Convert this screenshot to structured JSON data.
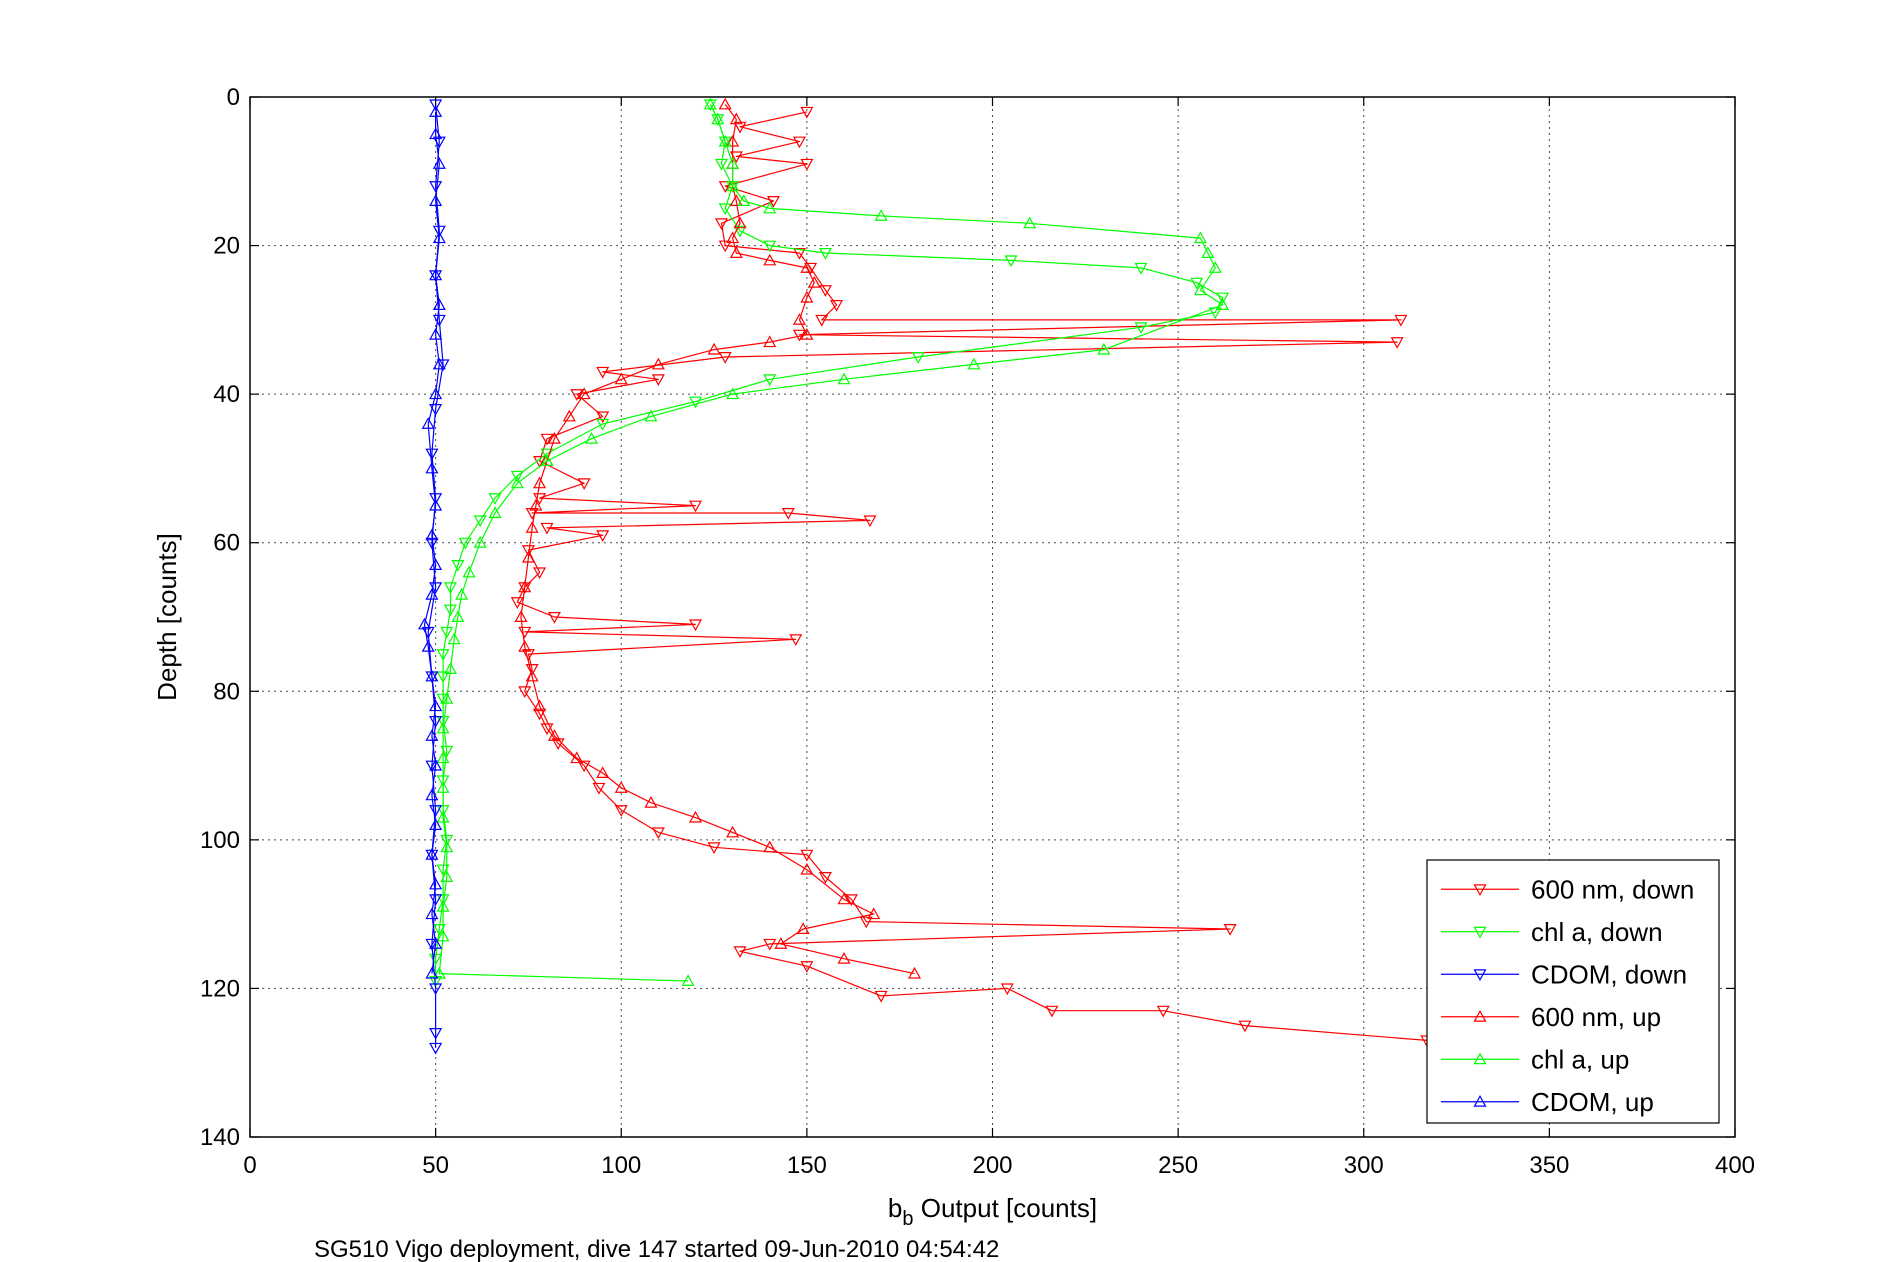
{
  "chart_data": {
    "type": "line",
    "xlabel_main": "b",
    "xlabel_sub": "b",
    "xlabel_rest": " Output [counts]",
    "ylabel": "Depth [counts]",
    "caption": "SG510 Vigo deployment, dive 147 started 09-Jun-2010 04:54:42",
    "xlim": [
      0,
      400
    ],
    "ylim": [
      0,
      140
    ],
    "y_reversed": true,
    "grid": true,
    "legend_position": "bottom-right",
    "xticks": [
      "0",
      "50",
      "100",
      "150",
      "200",
      "250",
      "300",
      "350",
      "400"
    ],
    "yticks": [
      "0",
      "20",
      "40",
      "60",
      "80",
      "100",
      "120",
      "140"
    ],
    "colors": {
      "red": "#ff0000",
      "green": "#00ff00",
      "blue": "#0000ff"
    },
    "series": [
      {
        "name": "600 nm, down",
        "color": "#ff0000",
        "marker": "triangle-down",
        "points": [
          [
            150,
            2
          ],
          [
            132,
            4
          ],
          [
            148,
            6
          ],
          [
            131,
            8
          ],
          [
            150,
            9
          ],
          [
            128,
            12
          ],
          [
            141,
            14
          ],
          [
            127,
            17
          ],
          [
            128,
            20
          ],
          [
            148,
            21
          ],
          [
            151,
            23
          ],
          [
            155,
            26
          ],
          [
            158,
            28
          ],
          [
            154,
            30
          ],
          [
            310,
            30
          ],
          [
            148,
            32
          ],
          [
            309,
            33
          ],
          [
            128,
            35
          ],
          [
            95,
            37
          ],
          [
            110,
            38
          ],
          [
            88,
            40
          ],
          [
            95,
            43
          ],
          [
            80,
            46
          ],
          [
            78,
            49
          ],
          [
            90,
            52
          ],
          [
            78,
            54
          ],
          [
            120,
            55
          ],
          [
            76,
            56
          ],
          [
            145,
            56
          ],
          [
            167,
            57
          ],
          [
            80,
            58
          ],
          [
            95,
            59
          ],
          [
            75,
            61
          ],
          [
            78,
            64
          ],
          [
            74,
            66
          ],
          [
            72,
            68
          ],
          [
            82,
            70
          ],
          [
            120,
            71
          ],
          [
            74,
            72
          ],
          [
            147,
            73
          ],
          [
            75,
            75
          ],
          [
            76,
            77
          ],
          [
            74,
            80
          ],
          [
            78,
            83
          ],
          [
            80,
            85
          ],
          [
            83,
            87
          ],
          [
            90,
            90
          ],
          [
            94,
            93
          ],
          [
            100,
            96
          ],
          [
            110,
            99
          ],
          [
            125,
            101
          ],
          [
            150,
            102
          ],
          [
            155,
            105
          ],
          [
            162,
            108
          ],
          [
            166,
            111
          ],
          [
            264,
            112
          ],
          [
            140,
            114
          ],
          [
            132,
            115
          ],
          [
            150,
            117
          ],
          [
            170,
            121
          ],
          [
            204,
            120
          ],
          [
            216,
            123
          ],
          [
            246,
            123
          ],
          [
            268,
            125
          ],
          [
            317,
            127
          ]
        ]
      },
      {
        "name": "chl a, down",
        "color": "#00ff00",
        "marker": "triangle-down",
        "points": [
          [
            124,
            1
          ],
          [
            126,
            3
          ],
          [
            128,
            6
          ],
          [
            127,
            9
          ],
          [
            130,
            12
          ],
          [
            128,
            15
          ],
          [
            132,
            18
          ],
          [
            140,
            20
          ],
          [
            155,
            21
          ],
          [
            205,
            22
          ],
          [
            240,
            23
          ],
          [
            255,
            25
          ],
          [
            262,
            27
          ],
          [
            260,
            29
          ],
          [
            240,
            31
          ],
          [
            180,
            35
          ],
          [
            140,
            38
          ],
          [
            120,
            41
          ],
          [
            95,
            44
          ],
          [
            80,
            48
          ],
          [
            72,
            51
          ],
          [
            66,
            54
          ],
          [
            62,
            57
          ],
          [
            58,
            60
          ],
          [
            56,
            63
          ],
          [
            54,
            66
          ],
          [
            54,
            69
          ],
          [
            53,
            72
          ],
          [
            52,
            75
          ],
          [
            52,
            78
          ],
          [
            52,
            81
          ],
          [
            52,
            84
          ],
          [
            53,
            88
          ],
          [
            52,
            92
          ],
          [
            52,
            96
          ],
          [
            53,
            100
          ],
          [
            52,
            104
          ],
          [
            52,
            108
          ],
          [
            51,
            112
          ],
          [
            50,
            116
          ],
          [
            50,
            119
          ]
        ]
      },
      {
        "name": "CDOM, down",
        "color": "#0000ff",
        "marker": "triangle-down",
        "points": [
          [
            50,
            1
          ],
          [
            51,
            6
          ],
          [
            50,
            12
          ],
          [
            51,
            18
          ],
          [
            50,
            24
          ],
          [
            51,
            30
          ],
          [
            52,
            36
          ],
          [
            50,
            42
          ],
          [
            49,
            48
          ],
          [
            50,
            54
          ],
          [
            49,
            60
          ],
          [
            50,
            66
          ],
          [
            48,
            72
          ],
          [
            49,
            78
          ],
          [
            50,
            84
          ],
          [
            49,
            90
          ],
          [
            50,
            96
          ],
          [
            49,
            102
          ],
          [
            50,
            108
          ],
          [
            49,
            114
          ],
          [
            50,
            120
          ],
          [
            50,
            126
          ],
          [
            50,
            128
          ]
        ]
      },
      {
        "name": "600 nm, up",
        "color": "#ff0000",
        "marker": "triangle-up",
        "points": [
          [
            179,
            118
          ],
          [
            160,
            116
          ],
          [
            143,
            114
          ],
          [
            149,
            112
          ],
          [
            168,
            110
          ],
          [
            160,
            108
          ],
          [
            150,
            104
          ],
          [
            140,
            101
          ],
          [
            130,
            99
          ],
          [
            120,
            97
          ],
          [
            108,
            95
          ],
          [
            100,
            93
          ],
          [
            95,
            91
          ],
          [
            88,
            89
          ],
          [
            82,
            86
          ],
          [
            78,
            82
          ],
          [
            76,
            78
          ],
          [
            74,
            74
          ],
          [
            73,
            70
          ],
          [
            74,
            66
          ],
          [
            75,
            62
          ],
          [
            76,
            58
          ],
          [
            77,
            55
          ],
          [
            78,
            52
          ],
          [
            80,
            49
          ],
          [
            82,
            46
          ],
          [
            86,
            43
          ],
          [
            90,
            40
          ],
          [
            100,
            38
          ],
          [
            110,
            36
          ],
          [
            125,
            34
          ],
          [
            140,
            33
          ],
          [
            150,
            32
          ],
          [
            148,
            30
          ],
          [
            150,
            27
          ],
          [
            152,
            25
          ],
          [
            150,
            23
          ],
          [
            140,
            22
          ],
          [
            131,
            21
          ],
          [
            130,
            19
          ],
          [
            132,
            17
          ],
          [
            131,
            14
          ],
          [
            130,
            12
          ],
          [
            130,
            9
          ],
          [
            130,
            6
          ],
          [
            131,
            3
          ],
          [
            128,
            1
          ]
        ]
      },
      {
        "name": "chl a, up",
        "color": "#00ff00",
        "marker": "triangle-up",
        "points": [
          [
            118,
            119
          ],
          [
            51,
            118
          ],
          [
            52,
            113
          ],
          [
            52,
            109
          ],
          [
            53,
            105
          ],
          [
            53,
            101
          ],
          [
            52,
            97
          ],
          [
            52,
            93
          ],
          [
            52,
            89
          ],
          [
            52,
            85
          ],
          [
            53,
            81
          ],
          [
            54,
            77
          ],
          [
            55,
            73
          ],
          [
            56,
            70
          ],
          [
            57,
            67
          ],
          [
            59,
            64
          ],
          [
            62,
            60
          ],
          [
            66,
            56
          ],
          [
            72,
            52
          ],
          [
            80,
            49
          ],
          [
            92,
            46
          ],
          [
            108,
            43
          ],
          [
            130,
            40
          ],
          [
            160,
            38
          ],
          [
            195,
            36
          ],
          [
            230,
            34
          ],
          [
            262,
            28
          ],
          [
            256,
            26
          ],
          [
            260,
            23
          ],
          [
            258,
            21
          ],
          [
            256,
            19
          ],
          [
            210,
            17
          ],
          [
            170,
            16
          ],
          [
            140,
            15
          ],
          [
            133,
            14
          ],
          [
            130,
            12
          ],
          [
            130,
            9
          ],
          [
            128,
            6
          ],
          [
            126,
            3
          ],
          [
            124,
            1
          ]
        ]
      },
      {
        "name": "CDOM, up",
        "color": "#0000ff",
        "marker": "triangle-up",
        "points": [
          [
            49,
            118
          ],
          [
            50,
            114
          ],
          [
            49,
            110
          ],
          [
            50,
            106
          ],
          [
            49,
            102
          ],
          [
            50,
            98
          ],
          [
            49,
            94
          ],
          [
            50,
            90
          ],
          [
            49,
            86
          ],
          [
            50,
            82
          ],
          [
            49,
            78
          ],
          [
            48,
            74
          ],
          [
            47,
            71
          ],
          [
            49,
            67
          ],
          [
            50,
            63
          ],
          [
            49,
            59
          ],
          [
            50,
            55
          ],
          [
            49,
            50
          ],
          [
            48,
            44
          ],
          [
            50,
            40
          ],
          [
            51,
            36
          ],
          [
            50,
            32
          ],
          [
            51,
            28
          ],
          [
            50,
            24
          ],
          [
            51,
            19
          ],
          [
            50,
            14
          ],
          [
            51,
            9
          ],
          [
            50,
            5
          ],
          [
            50,
            2
          ]
        ]
      }
    ]
  }
}
